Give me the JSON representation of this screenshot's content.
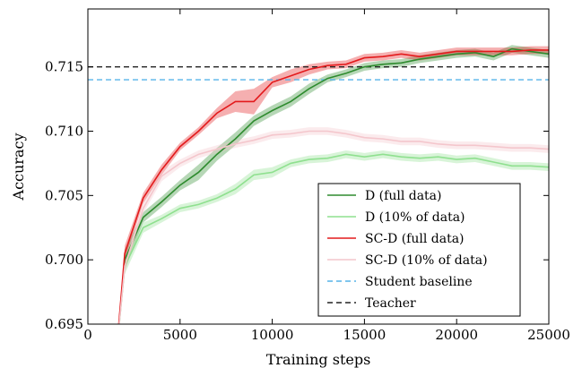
{
  "chart_data": {
    "type": "line",
    "xlabel": "Training steps",
    "ylabel": "Accuracy",
    "xlim": [
      0,
      25000
    ],
    "ylim": [
      0.695,
      0.7195
    ],
    "xticks": [
      0,
      5000,
      10000,
      15000,
      20000,
      25000
    ],
    "xtick_labels": [
      "0",
      "5000",
      "10000",
      "15000",
      "20000",
      "25000"
    ],
    "yticks": [
      0.695,
      0.7,
      0.705,
      0.71,
      0.715
    ],
    "ytick_labels": [
      "0.695",
      "0.700",
      "0.705",
      "0.710",
      "0.715"
    ],
    "grid": false,
    "legend_position": "lower-right",
    "series": [
      {
        "name": "D (full data)",
        "color": "#2e8b2e",
        "style": "solid",
        "x": [
          1500,
          2000,
          3000,
          4000,
          5000,
          6000,
          7000,
          8000,
          9000,
          10000,
          11000,
          12000,
          13000,
          14000,
          15000,
          16000,
          17000,
          18000,
          19000,
          20000,
          21000,
          22000,
          23000,
          24000,
          25000
        ],
        "y": [
          0.692,
          0.7,
          0.7033,
          0.7045,
          0.7058,
          0.7068,
          0.7082,
          0.7094,
          0.7108,
          0.7116,
          0.7123,
          0.7133,
          0.7141,
          0.7145,
          0.715,
          0.7152,
          0.7153,
          0.7156,
          0.7158,
          0.716,
          0.7161,
          0.7158,
          0.7164,
          0.7162,
          0.716
        ],
        "band": [
          0.0004,
          0.0008,
          0.0004,
          0.0004,
          0.0004,
          0.0006,
          0.0005,
          0.0005,
          0.0004,
          0.0004,
          0.0004,
          0.0004,
          0.0003,
          0.0003,
          0.0003,
          0.0003,
          0.0003,
          0.0003,
          0.0003,
          0.0003,
          0.0003,
          0.0003,
          0.0003,
          0.0003,
          0.0003
        ]
      },
      {
        "name": "D (10% of data)",
        "color": "#8fe08f",
        "style": "solid",
        "x": [
          1500,
          2000,
          3000,
          4000,
          5000,
          6000,
          7000,
          8000,
          9000,
          10000,
          11000,
          12000,
          13000,
          14000,
          15000,
          16000,
          17000,
          18000,
          19000,
          20000,
          21000,
          22000,
          23000,
          24000,
          25000
        ],
        "y": [
          0.692,
          0.6995,
          0.7025,
          0.7032,
          0.704,
          0.7043,
          0.7048,
          0.7055,
          0.7066,
          0.7068,
          0.7075,
          0.7078,
          0.7079,
          0.7082,
          0.708,
          0.7082,
          0.708,
          0.7079,
          0.708,
          0.7078,
          0.7079,
          0.7076,
          0.7073,
          0.7073,
          0.7072
        ],
        "band": [
          0.0004,
          0.0006,
          0.0004,
          0.0003,
          0.0003,
          0.0003,
          0.0003,
          0.0004,
          0.0004,
          0.0004,
          0.0003,
          0.0003,
          0.0003,
          0.0003,
          0.0003,
          0.0003,
          0.0003,
          0.0003,
          0.0003,
          0.0003,
          0.0003,
          0.0003,
          0.0003,
          0.0003,
          0.0003
        ]
      },
      {
        "name": "SC-D (full data)",
        "color": "#e31a1c",
        "style": "solid",
        "x": [
          1500,
          2000,
          3000,
          4000,
          5000,
          6000,
          7000,
          8000,
          9000,
          10000,
          11000,
          12000,
          13000,
          14000,
          15000,
          16000,
          17000,
          18000,
          19000,
          20000,
          21000,
          22000,
          23000,
          24000,
          25000
        ],
        "y": [
          0.692,
          0.7005,
          0.7048,
          0.707,
          0.7088,
          0.71,
          0.7114,
          0.7123,
          0.7123,
          0.7138,
          0.7143,
          0.7148,
          0.7151,
          0.7152,
          0.7157,
          0.7158,
          0.716,
          0.7158,
          0.716,
          0.7162,
          0.7162,
          0.7162,
          0.7162,
          0.7163,
          0.7163
        ],
        "band": [
          0.0004,
          0.0006,
          0.0004,
          0.0004,
          0.0003,
          0.0003,
          0.0004,
          0.0008,
          0.001,
          0.0004,
          0.0005,
          0.0004,
          0.0003,
          0.0003,
          0.0003,
          0.0003,
          0.0003,
          0.0003,
          0.0003,
          0.0003,
          0.0003,
          0.0003,
          0.0003,
          0.0003,
          0.0003
        ]
      },
      {
        "name": "SC-D (10% of data)",
        "color": "#f4c6cc",
        "style": "solid",
        "x": [
          1500,
          2000,
          3000,
          4000,
          5000,
          6000,
          7000,
          8000,
          9000,
          10000,
          11000,
          12000,
          13000,
          14000,
          15000,
          16000,
          17000,
          18000,
          19000,
          20000,
          21000,
          22000,
          23000,
          24000,
          25000
        ],
        "y": [
          0.692,
          0.6995,
          0.704,
          0.7065,
          0.7075,
          0.7082,
          0.7086,
          0.709,
          0.7093,
          0.7097,
          0.7098,
          0.71,
          0.71,
          0.7098,
          0.7095,
          0.7094,
          0.7092,
          0.7092,
          0.709,
          0.7089,
          0.7089,
          0.7088,
          0.7087,
          0.7087,
          0.7086
        ],
        "band": [
          0.0004,
          0.0006,
          0.0004,
          0.0004,
          0.0003,
          0.0003,
          0.0003,
          0.0003,
          0.0003,
          0.0003,
          0.0003,
          0.0003,
          0.0003,
          0.0003,
          0.0003,
          0.0003,
          0.0003,
          0.0003,
          0.0003,
          0.0003,
          0.0003,
          0.0003,
          0.0003,
          0.0003,
          0.0003
        ]
      },
      {
        "name": "Student baseline",
        "color": "#56b4e9",
        "style": "dashed",
        "x": [
          0,
          25000
        ],
        "y": [
          0.714,
          0.714
        ]
      },
      {
        "name": "Teacher",
        "color": "#222222",
        "style": "dashed",
        "x": [
          0,
          25000
        ],
        "y": [
          0.715,
          0.715
        ]
      }
    ]
  }
}
